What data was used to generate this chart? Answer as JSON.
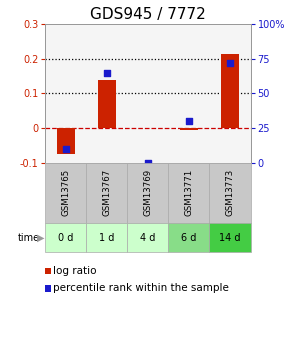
{
  "title": "GDS945 / 7772",
  "samples": [
    "GSM13765",
    "GSM13767",
    "GSM13769",
    "GSM13771",
    "GSM13773"
  ],
  "time_labels": [
    "0 d",
    "1 d",
    "4 d",
    "6 d",
    "14 d"
  ],
  "log_ratio": [
    -0.075,
    0.14,
    0.0,
    -0.005,
    0.215
  ],
  "percentile_rank_pct": [
    10,
    65,
    0,
    30,
    72
  ],
  "ylim_left": [
    -0.1,
    0.3
  ],
  "ylim_right": [
    0,
    100
  ],
  "bar_color": "#cc2200",
  "dot_color": "#1a1acc",
  "bar_width": 0.45,
  "zero_line_color": "#cc0000",
  "dotted_line_color": "#000000",
  "bg_color": "#ffffff",
  "plot_bg": "#f5f5f5",
  "time_row_colors": [
    "#ccffcc",
    "#ccffcc",
    "#ccffcc",
    "#88dd88",
    "#44cc44"
  ],
  "sample_row_color": "#c8c8c8",
  "title_fontsize": 11,
  "tick_fontsize": 7,
  "legend_fontsize": 7.5
}
